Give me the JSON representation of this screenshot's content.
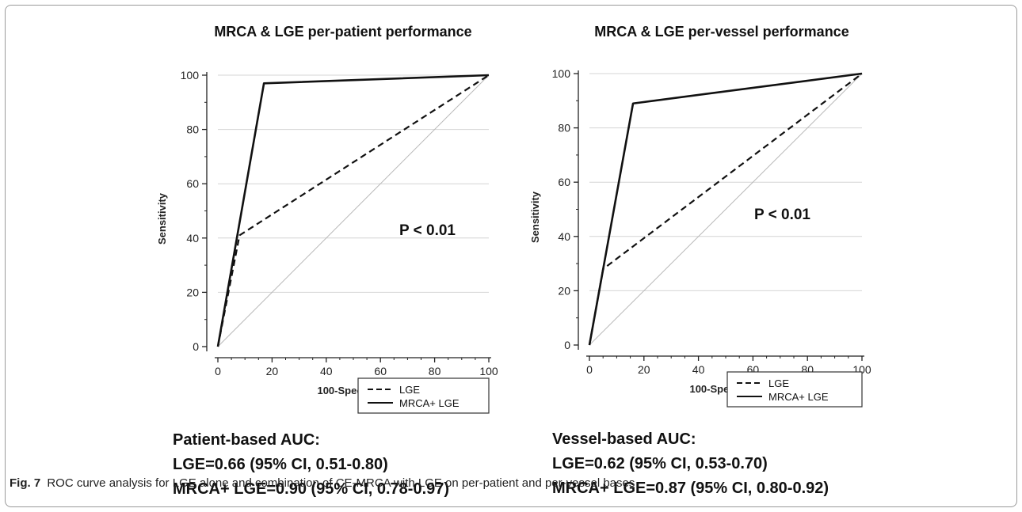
{
  "figure": {
    "caption_label": "Fig. 7",
    "caption_text": "ROC curve analysis for LGE alone and combination of CE-MRCA with LGE on per-patient and per-vessel bases"
  },
  "chart_data": [
    {
      "type": "line",
      "title": "MRCA & LGE per-patient performance",
      "xlabel": "100-Specificity",
      "ylabel": "Sensitivity",
      "xlim": [
        0,
        100
      ],
      "ylim": [
        0,
        100
      ],
      "x_ticks": [
        0,
        20,
        40,
        60,
        80,
        100
      ],
      "y_ticks": [
        0,
        20,
        40,
        60,
        80,
        100
      ],
      "grid": true,
      "legend_position": "bottom-right",
      "annotation": "P < 0.01",
      "series": [
        {
          "name": "LGE",
          "style": "dashed",
          "x": [
            0,
            8,
            100
          ],
          "y": [
            0,
            41,
            100
          ]
        },
        {
          "name": "MRCA+ LGE",
          "style": "solid",
          "x": [
            0,
            17,
            100
          ],
          "y": [
            0,
            97,
            100
          ]
        }
      ],
      "stats_heading": "Patient-based AUC:",
      "stats": [
        "LGE=0.66 (95% CI, 0.51-0.80)",
        "MRCA+ LGE=0.90 (95% CI, 0.78-0.97)"
      ]
    },
    {
      "type": "line",
      "title": "MRCA & LGE per-vessel performance",
      "xlabel": "100-Specificity",
      "ylabel": "Sensitivity",
      "xlim": [
        0,
        100
      ],
      "ylim": [
        0,
        100
      ],
      "x_ticks": [
        0,
        20,
        40,
        60,
        80,
        100
      ],
      "y_ticks": [
        0,
        20,
        40,
        60,
        80,
        100
      ],
      "grid": true,
      "legend_position": "bottom-right",
      "annotation": "P < 0.01",
      "series": [
        {
          "name": "LGE",
          "style": "dashed",
          "x": [
            0,
            5,
            100
          ],
          "y": [
            0,
            28,
            100
          ]
        },
        {
          "name": "MRCA+ LGE",
          "style": "solid",
          "x": [
            0,
            16,
            100
          ],
          "y": [
            0,
            89,
            100
          ]
        }
      ],
      "stats_heading": "Vessel-based AUC:",
      "stats": [
        "LGE=0.62 (95% CI, 0.53-0.70)",
        "MRCA+ LGE=0.87 (95% CI, 0.80-0.92)"
      ]
    }
  ]
}
